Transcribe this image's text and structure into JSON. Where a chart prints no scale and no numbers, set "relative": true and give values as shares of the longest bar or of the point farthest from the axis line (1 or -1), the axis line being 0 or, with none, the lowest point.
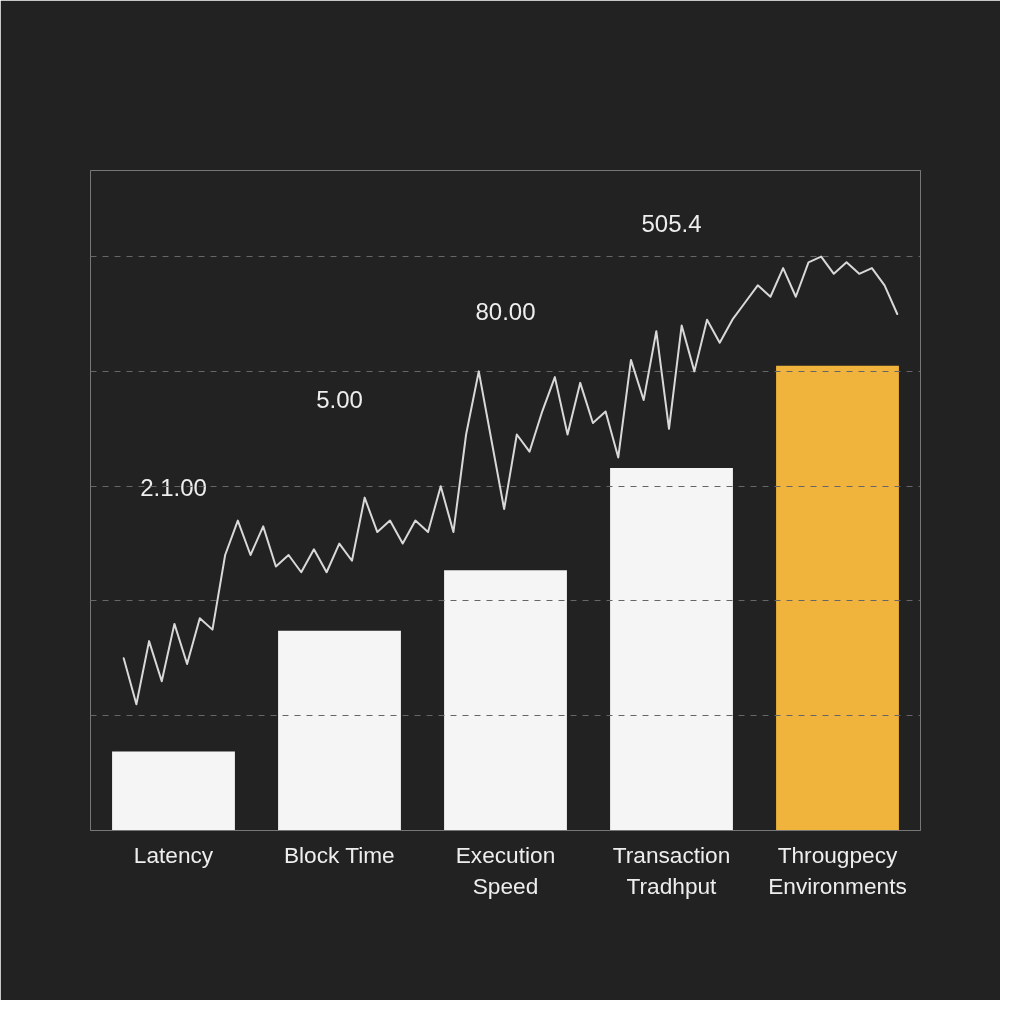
{
  "chart_data": [
    {
      "type": "bar",
      "relative": true,
      "categories": [
        "Latency",
        "Block Time",
        "Execution\nSpeed",
        "Transaction\nTradhput",
        "Througpecy\nEnvironments"
      ],
      "colors": [
        "#f5f5f5",
        "#f5f5f5",
        "#f5f5f5",
        "#f5f5f5",
        "#f0b33c"
      ],
      "values": [
        0.17,
        0.43,
        0.56,
        0.78,
        1.0
      ],
      "annotations": [
        "2.1.00",
        "5.00",
        "80.00",
        "505.4"
      ]
    },
    {
      "type": "line",
      "relative": true,
      "grid": "y",
      "categories": [
        null,
        null,
        null,
        null,
        null,
        null,
        null,
        null,
        null,
        null,
        null,
        null,
        null,
        null,
        null,
        null,
        null,
        null,
        null,
        null,
        null,
        null,
        null,
        null,
        null,
        null,
        null,
        null,
        null,
        null,
        null,
        null,
        null,
        null,
        null,
        null,
        null,
        null,
        null,
        null,
        null,
        null,
        null,
        null,
        null,
        null,
        null,
        null,
        null,
        null,
        null,
        null,
        null,
        null,
        null,
        null,
        null,
        null,
        null,
        null,
        null,
        null
      ],
      "series": [
        {
          "color": "#d8d8d8",
          "values": [
            0.3,
            0.22,
            0.33,
            0.26,
            0.36,
            0.29,
            0.37,
            0.35,
            0.48,
            0.54,
            0.48,
            0.53,
            0.46,
            0.48,
            0.45,
            0.49,
            0.45,
            0.5,
            0.47,
            0.58,
            0.52,
            0.54,
            0.5,
            0.54,
            0.52,
            0.6,
            0.52,
            0.69,
            0.8,
            0.68,
            0.56,
            0.69,
            0.66,
            0.73,
            0.79,
            0.69,
            0.78,
            0.71,
            0.73,
            0.65,
            0.82,
            0.75,
            0.87,
            0.7,
            0.88,
            0.8,
            0.89,
            0.85,
            0.89,
            0.92,
            0.95,
            0.93,
            0.98,
            0.93,
            0.99,
            1.0,
            0.97,
            0.99,
            0.97,
            0.98,
            0.95,
            0.9
          ]
        }
      ]
    }
  ]
}
